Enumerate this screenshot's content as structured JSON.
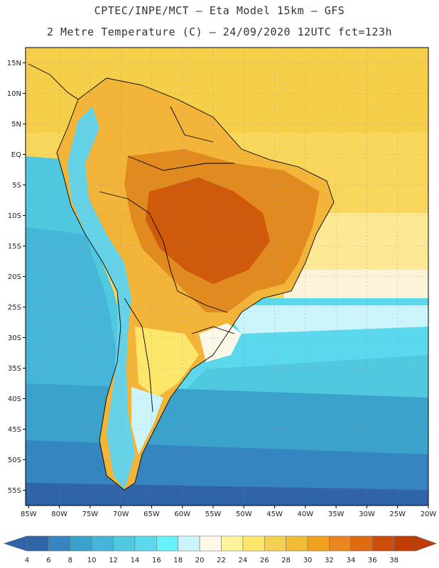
{
  "title": {
    "line1": "CPTEC/INPE/MCT –  Eta Model 15km – GFS",
    "line2": "2 Metre Temperature (C) – 24/09/2020 12UTC fct=123h"
  },
  "map": {
    "lat_labels": [
      "15N",
      "10N",
      "5N",
      "EQ",
      "5S",
      "10S",
      "15S",
      "20S",
      "25S",
      "30S",
      "35S",
      "40S",
      "45S",
      "50S",
      "55S"
    ],
    "lon_labels": [
      "85W",
      "80W",
      "75W",
      "70W",
      "65W",
      "60W",
      "55W",
      "50W",
      "45W",
      "40W",
      "35W",
      "30W",
      "25W",
      "20W"
    ],
    "lat_range": [
      17.5,
      -57.5
    ],
    "lon_range": [
      -85.5,
      -20
    ]
  },
  "legend": {
    "labels": [
      "4",
      "6",
      "8",
      "10",
      "12",
      "14",
      "16",
      "18",
      "20",
      "22",
      "24",
      "26",
      "28",
      "30",
      "32",
      "34",
      "36",
      "38"
    ],
    "colors": [
      "#2f65a8",
      "#3585c0",
      "#3ba2cc",
      "#46b6d8",
      "#4fc8e0",
      "#5cd8ec",
      "#66f2fb",
      "#ccf4fb",
      "#fdf8e8",
      "#fdf39a",
      "#fde76a",
      "#f6d050",
      "#f1bd35",
      "#f0a11e",
      "#e9861f",
      "#de6a12",
      "#cf4c0c",
      "#c23c05"
    ],
    "left_color": "#2f65a8",
    "right_color": "#c23c05"
  }
}
